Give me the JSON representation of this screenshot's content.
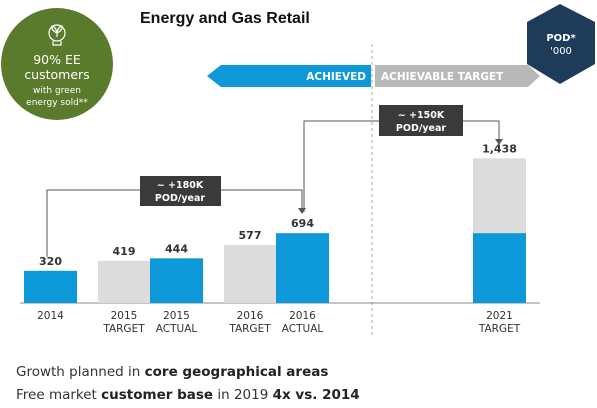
{
  "title": "Energy and Gas Retail",
  "badge": {
    "line1": "90% EE",
    "line2": "customers",
    "line3": "with green",
    "line4": "energy sold**",
    "color": "#5a7a2c"
  },
  "hexagon": {
    "line1": "POD*",
    "line2": "'000",
    "color": "#1f3b5a"
  },
  "banner": {
    "achieved": "ACHIEVED",
    "achievable": "ACHIEVABLE TARGET"
  },
  "callouts": [
    {
      "line1": "~ +180K",
      "line2": "POD/year"
    },
    {
      "line1": "~ +150K",
      "line2": "POD/year"
    }
  ],
  "notes": [
    {
      "pre": "Growth planned in ",
      "bold1": "core geographical areas",
      "mid": "",
      "bold2": ""
    },
    {
      "pre": "Free market ",
      "bold1": "customer base",
      "mid": " in 2019 ",
      "bold2": "4x vs. 2014"
    }
  ],
  "colors": {
    "actual": "#0d99d9",
    "target": "#dcdcdc",
    "callout": "#3a3a3a",
    "grey_banner": "#b8b8b8"
  },
  "chart_data": {
    "type": "bar",
    "title": "Energy and Gas Retail",
    "unit": "POD* '000",
    "bars": [
      {
        "group": "2014",
        "label": "",
        "kind": "actual",
        "value": 320,
        "label_text": "320"
      },
      {
        "group": "2015",
        "label": "TARGET",
        "kind": "target",
        "value": 419,
        "label_text": "419"
      },
      {
        "group": "2015",
        "label": "ACTUAL",
        "kind": "actual",
        "value": 444,
        "label_text": "444"
      },
      {
        "group": "2016",
        "label": "TARGET",
        "kind": "target",
        "value": 577,
        "label_text": "577"
      },
      {
        "group": "2016",
        "label": "ACTUAL",
        "kind": "actual",
        "value": 694,
        "label_text": "694"
      },
      {
        "group": "2021",
        "label": "TARGET",
        "kind": "target",
        "value": 1438,
        "label_text": "1,438",
        "actual_part": 694
      }
    ],
    "ylim": [
      0,
      1500
    ],
    "grid": false
  }
}
